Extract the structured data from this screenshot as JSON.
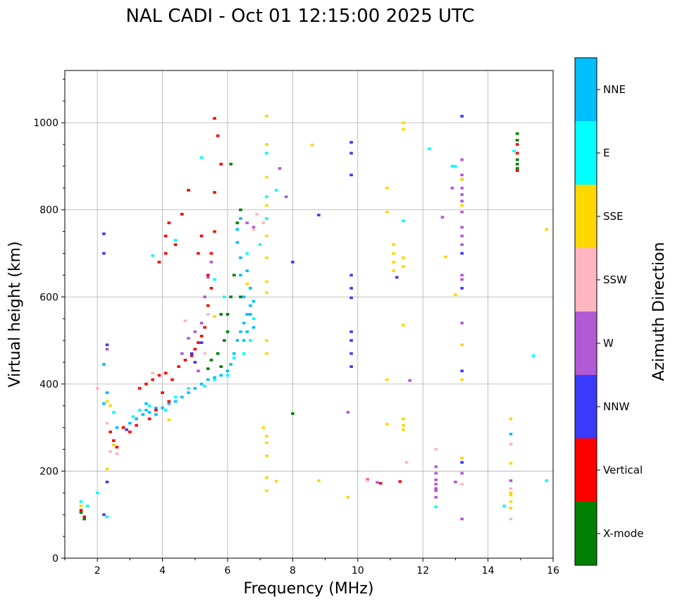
{
  "chart_data": {
    "type": "scatter",
    "title": "NAL CADI - Oct 01 12:15:00 2025 UTC",
    "xlabel": "Frequency (MHz)",
    "ylabel": "Virtual height (km)",
    "xlim": [
      1,
      16
    ],
    "ylim": [
      0,
      1120
    ],
    "xticks": [
      2,
      4,
      6,
      8,
      10,
      12,
      14,
      16
    ],
    "yticks": [
      0,
      200,
      400,
      600,
      800,
      1000
    ],
    "grid": true,
    "colorbar": {
      "title": "Azimuth Direction",
      "categories": [
        {
          "name": "X-mode",
          "color": "#008000"
        },
        {
          "name": "Vertical",
          "color": "#ff0000"
        },
        {
          "name": "NNW",
          "color": "#3a3aff"
        },
        {
          "name": "W",
          "color": "#b259d6"
        },
        {
          "name": "SSW",
          "color": "#ffb6c1"
        },
        {
          "name": "SSE",
          "color": "#ffd700"
        },
        {
          "name": "E",
          "color": "#00ffff"
        },
        {
          "name": "NNE",
          "color": "#00bfff"
        }
      ]
    },
    "series": [
      {
        "name": "NNE",
        "points": [
          [
            2.2,
            355
          ],
          [
            2.6,
            300
          ],
          [
            2.8,
            300
          ],
          [
            3.0,
            310
          ],
          [
            3.2,
            320
          ],
          [
            3.4,
            330
          ],
          [
            3.5,
            340
          ],
          [
            3.6,
            335
          ],
          [
            3.8,
            330
          ],
          [
            4.0,
            345
          ],
          [
            4.2,
            355
          ],
          [
            4.4,
            360
          ],
          [
            4.6,
            370
          ],
          [
            4.8,
            380
          ],
          [
            5.0,
            390
          ],
          [
            5.2,
            400
          ],
          [
            5.4,
            410
          ],
          [
            5.6,
            415
          ],
          [
            5.8,
            420
          ],
          [
            6.0,
            430
          ],
          [
            6.1,
            445
          ],
          [
            6.2,
            470
          ],
          [
            6.3,
            500
          ],
          [
            6.4,
            520
          ],
          [
            6.5,
            540
          ],
          [
            6.6,
            560
          ],
          [
            6.7,
            580
          ],
          [
            6.5,
            600
          ],
          [
            6.4,
            650
          ],
          [
            6.4,
            690
          ],
          [
            6.6,
            660
          ],
          [
            6.3,
            725
          ],
          [
            6.3,
            755
          ],
          [
            6.4,
            780
          ],
          [
            6.7,
            560
          ],
          [
            6.7,
            620
          ],
          [
            6.6,
            520
          ],
          [
            6.8,
            530
          ],
          [
            6.5,
            500
          ],
          [
            3.5,
            355
          ],
          [
            3.8,
            345
          ],
          [
            2.2,
            445
          ],
          [
            2.3,
            380
          ],
          [
            6.8,
            590
          ],
          [
            14.7,
            285
          ]
        ]
      },
      {
        "name": "E",
        "points": [
          [
            1.5,
            130
          ],
          [
            1.7,
            120
          ],
          [
            2.0,
            150
          ],
          [
            2.3,
            95
          ],
          [
            2.5,
            335
          ],
          [
            2.8,
            300
          ],
          [
            3.1,
            325
          ],
          [
            3.3,
            340
          ],
          [
            3.6,
            350
          ],
          [
            4.1,
            340
          ],
          [
            4.4,
            370
          ],
          [
            4.8,
            390
          ],
          [
            5.3,
            395
          ],
          [
            5.6,
            410
          ],
          [
            6.0,
            420
          ],
          [
            6.2,
            460
          ],
          [
            6.5,
            470
          ],
          [
            6.7,
            500
          ],
          [
            6.8,
            550
          ],
          [
            6.6,
            700
          ],
          [
            7.0,
            720
          ],
          [
            7.2,
            780
          ],
          [
            7.2,
            830
          ],
          [
            7.2,
            930
          ],
          [
            7.5,
            845
          ],
          [
            11.4,
            775
          ],
          [
            12.2,
            940
          ],
          [
            12.9,
            900
          ],
          [
            13.0,
            900
          ],
          [
            15.4,
            465
          ],
          [
            15.8,
            178
          ],
          [
            14.8,
            935
          ],
          [
            14.5,
            120
          ],
          [
            12.4,
            118
          ],
          [
            3.7,
            695
          ],
          [
            4.4,
            730
          ],
          [
            5.2,
            920
          ],
          [
            5.6,
            640
          ],
          [
            5.9,
            600
          ]
        ]
      },
      {
        "name": "Vertical",
        "points": [
          [
            1.5,
            110
          ],
          [
            1.6,
            95
          ],
          [
            2.4,
            290
          ],
          [
            2.5,
            270
          ],
          [
            2.6,
            255
          ],
          [
            2.8,
            300
          ],
          [
            3.0,
            290
          ],
          [
            3.2,
            305
          ],
          [
            3.3,
            390
          ],
          [
            3.5,
            400
          ],
          [
            3.7,
            410
          ],
          [
            3.9,
            420
          ],
          [
            4.1,
            425
          ],
          [
            4.3,
            410
          ],
          [
            4.5,
            440
          ],
          [
            4.7,
            455
          ],
          [
            4.9,
            465
          ],
          [
            5.0,
            480
          ],
          [
            5.1,
            495
          ],
          [
            5.2,
            510
          ],
          [
            5.3,
            530
          ],
          [
            5.4,
            580
          ],
          [
            5.5,
            620
          ],
          [
            5.5,
            700
          ],
          [
            5.6,
            750
          ],
          [
            5.6,
            1010
          ],
          [
            5.7,
            970
          ],
          [
            5.6,
            840
          ],
          [
            5.8,
            905
          ],
          [
            3.9,
            680
          ],
          [
            4.1,
            740
          ],
          [
            4.2,
            770
          ],
          [
            4.4,
            720
          ],
          [
            4.6,
            790
          ],
          [
            4.0,
            380
          ],
          [
            4.2,
            360
          ],
          [
            3.8,
            340
          ],
          [
            3.6,
            320
          ],
          [
            10.3,
            180
          ],
          [
            10.7,
            172
          ],
          [
            11.3,
            176
          ],
          [
            14.9,
            950
          ],
          [
            14.9,
            930
          ],
          [
            14.9,
            890
          ],
          [
            4.8,
            845
          ],
          [
            4.1,
            700
          ],
          [
            5.2,
            740
          ],
          [
            5.1,
            700
          ],
          [
            5.4,
            650
          ]
        ]
      },
      {
        "name": "X-mode",
        "points": [
          [
            1.6,
            90
          ],
          [
            1.5,
            105
          ],
          [
            5.4,
            435
          ],
          [
            5.7,
            470
          ],
          [
            5.9,
            500
          ],
          [
            6.0,
            520
          ],
          [
            6.0,
            560
          ],
          [
            6.1,
            600
          ],
          [
            6.2,
            650
          ],
          [
            6.4,
            800
          ],
          [
            6.3,
            770
          ],
          [
            5.8,
            440
          ],
          [
            6.1,
            905
          ],
          [
            8.0,
            332
          ],
          [
            14.9,
            975
          ],
          [
            14.9,
            960
          ],
          [
            14.9,
            915
          ],
          [
            14.9,
            905
          ],
          [
            14.9,
            895
          ],
          [
            5.5,
            455
          ],
          [
            5.8,
            560
          ],
          [
            6.4,
            600
          ]
        ]
      },
      {
        "name": "NNW",
        "points": [
          [
            2.2,
            700
          ],
          [
            2.2,
            745
          ],
          [
            2.3,
            490
          ],
          [
            2.3,
            175
          ],
          [
            2.2,
            100
          ],
          [
            8.0,
            680
          ],
          [
            8.8,
            788
          ],
          [
            9.8,
            955
          ],
          [
            9.8,
            930
          ],
          [
            9.8,
            880
          ],
          [
            9.8,
            650
          ],
          [
            9.8,
            620
          ],
          [
            9.8,
            598
          ],
          [
            9.8,
            520
          ],
          [
            9.8,
            500
          ],
          [
            9.8,
            470
          ],
          [
            9.8,
            440
          ],
          [
            11.2,
            645
          ],
          [
            13.2,
            1015
          ],
          [
            13.2,
            870
          ],
          [
            13.2,
            700
          ],
          [
            13.2,
            620
          ],
          [
            13.2,
            430
          ],
          [
            13.2,
            220
          ],
          [
            5.2,
            495
          ],
          [
            4.9,
            470
          ],
          [
            5.0,
            450
          ],
          [
            2.9,
            295
          ]
        ]
      },
      {
        "name": "W",
        "points": [
          [
            2.3,
            480
          ],
          [
            4.8,
            505
          ],
          [
            5.0,
            520
          ],
          [
            5.2,
            540
          ],
          [
            5.3,
            600
          ],
          [
            5.4,
            645
          ],
          [
            5.5,
            680
          ],
          [
            6.6,
            770
          ],
          [
            6.8,
            760
          ],
          [
            7.6,
            895
          ],
          [
            7.8,
            830
          ],
          [
            9.7,
            335
          ],
          [
            10.6,
            174
          ],
          [
            11.6,
            408
          ],
          [
            12.4,
            210
          ],
          [
            12.4,
            195
          ],
          [
            12.4,
            180
          ],
          [
            12.4,
            170
          ],
          [
            12.4,
            160
          ],
          [
            12.4,
            155
          ],
          [
            12.4,
            140
          ],
          [
            12.6,
            783
          ],
          [
            12.9,
            850
          ],
          [
            13.2,
            915
          ],
          [
            13.2,
            880
          ],
          [
            13.2,
            850
          ],
          [
            13.2,
            835
          ],
          [
            13.2,
            820
          ],
          [
            13.2,
            795
          ],
          [
            13.2,
            760
          ],
          [
            13.2,
            740
          ],
          [
            13.2,
            720
          ],
          [
            13.2,
            650
          ],
          [
            13.2,
            640
          ],
          [
            13.2,
            540
          ],
          [
            13.2,
            195
          ],
          [
            13.2,
            90
          ],
          [
            13.0,
            175
          ],
          [
            14.7,
            178
          ],
          [
            5.1,
            430
          ],
          [
            4.6,
            470
          ]
        ]
      },
      {
        "name": "SSW",
        "points": [
          [
            2.0,
            390
          ],
          [
            2.4,
            245
          ],
          [
            2.3,
            310
          ],
          [
            4.7,
            545
          ],
          [
            5.3,
            470
          ],
          [
            5.4,
            560
          ],
          [
            6.8,
            755
          ],
          [
            6.9,
            790
          ],
          [
            7.1,
            770
          ],
          [
            10.3,
            178
          ],
          [
            11.5,
            220
          ],
          [
            12.4,
            250
          ],
          [
            13.2,
            170
          ],
          [
            14.7,
            262
          ],
          [
            14.7,
            160
          ],
          [
            14.7,
            148
          ],
          [
            14.7,
            90
          ],
          [
            2.6,
            240
          ],
          [
            3.7,
            425
          ]
        ]
      },
      {
        "name": "SSE",
        "points": [
          [
            1.5,
            120
          ],
          [
            2.3,
            205
          ],
          [
            2.3,
            360
          ],
          [
            2.5,
            260
          ],
          [
            2.4,
            350
          ],
          [
            4.2,
            318
          ],
          [
            5.6,
            555
          ],
          [
            6.6,
            630
          ],
          [
            7.1,
            300
          ],
          [
            7.2,
            1015
          ],
          [
            7.2,
            950
          ],
          [
            7.2,
            875
          ],
          [
            7.2,
            810
          ],
          [
            7.2,
            740
          ],
          [
            7.2,
            690
          ],
          [
            7.2,
            635
          ],
          [
            7.2,
            610
          ],
          [
            7.2,
            500
          ],
          [
            7.2,
            470
          ],
          [
            7.2,
            280
          ],
          [
            7.2,
            265
          ],
          [
            7.2,
            235
          ],
          [
            7.2,
            185
          ],
          [
            7.2,
            155
          ],
          [
            7.5,
            177
          ],
          [
            8.6,
            949
          ],
          [
            8.8,
            178
          ],
          [
            9.7,
            140
          ],
          [
            10.9,
            850
          ],
          [
            10.9,
            795
          ],
          [
            10.9,
            410
          ],
          [
            10.9,
            308
          ],
          [
            11.1,
            720
          ],
          [
            11.1,
            700
          ],
          [
            11.1,
            680
          ],
          [
            11.1,
            660
          ],
          [
            11.4,
            1000
          ],
          [
            11.4,
            985
          ],
          [
            11.4,
            690
          ],
          [
            11.4,
            670
          ],
          [
            11.4,
            535
          ],
          [
            11.4,
            320
          ],
          [
            11.4,
            305
          ],
          [
            11.4,
            295
          ],
          [
            12.7,
            692
          ],
          [
            13.0,
            605
          ],
          [
            13.2,
            870
          ],
          [
            13.2,
            810
          ],
          [
            13.2,
            490
          ],
          [
            13.2,
            410
          ],
          [
            13.2,
            230
          ],
          [
            14.7,
            320
          ],
          [
            14.7,
            218
          ],
          [
            14.7,
            150
          ],
          [
            14.7,
            145
          ],
          [
            14.7,
            130
          ],
          [
            14.7,
            115
          ],
          [
            15.8,
            755
          ]
        ]
      }
    ]
  }
}
